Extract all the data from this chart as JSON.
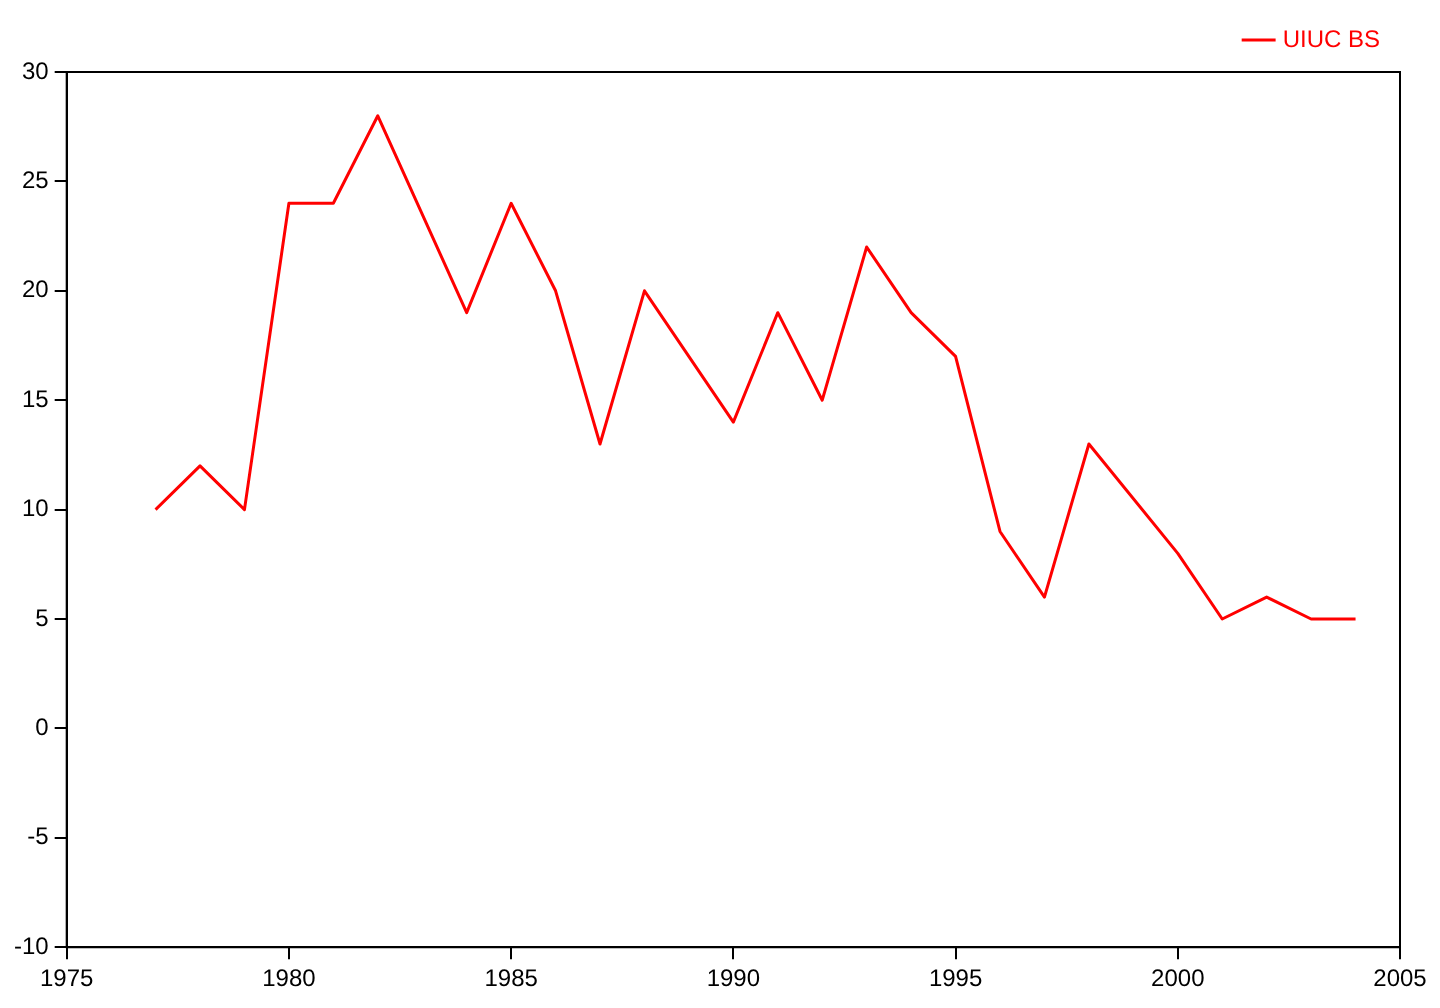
{
  "chart_data": {
    "type": "line",
    "x": [
      1977,
      1978,
      1979,
      1980,
      1981,
      1982,
      1984,
      1985,
      1986,
      1987,
      1988,
      1990,
      1991,
      1992,
      1993,
      1994,
      1995,
      1996,
      1997,
      1998,
      2000,
      2001,
      2002,
      2003,
      2004
    ],
    "series": [
      {
        "name": "UIUC BS",
        "color": "#ff0000",
        "values": [
          10,
          12,
          10,
          24,
          24,
          28,
          19,
          24,
          20,
          13,
          20,
          14,
          19,
          15,
          22,
          19,
          17,
          9,
          6,
          13,
          8,
          5,
          6,
          5,
          5
        ]
      }
    ],
    "xlim": [
      1975,
      2005
    ],
    "xticks": [
      1975,
      1980,
      1985,
      1990,
      1995,
      2000,
      2005
    ],
    "ylim": [
      -10,
      30
    ],
    "yticks": [
      -10,
      -5,
      0,
      5,
      10,
      15,
      20,
      25,
      30
    ],
    "legend": "top right",
    "marker": "none",
    "line_style": "solid",
    "grid": false
  }
}
